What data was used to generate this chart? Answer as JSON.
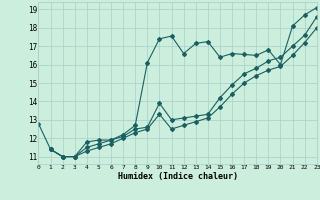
{
  "xlabel": "Humidex (Indice chaleur)",
  "bg_color": "#cceedd",
  "grid_color": "#aacccc",
  "line_color": "#1a6060",
  "xlim": [
    0,
    23
  ],
  "ylim": [
    10.6,
    19.4
  ],
  "xticks": [
    0,
    1,
    2,
    3,
    4,
    5,
    6,
    7,
    8,
    9,
    10,
    11,
    12,
    13,
    14,
    15,
    16,
    17,
    18,
    19,
    20,
    21,
    22,
    23
  ],
  "yticks": [
    11,
    12,
    13,
    14,
    15,
    16,
    17,
    18,
    19
  ],
  "line1_x": [
    0,
    1,
    2,
    3,
    4,
    5,
    6,
    7,
    8,
    9,
    10,
    11,
    12,
    13,
    14,
    15,
    16,
    17,
    18,
    19,
    20,
    21,
    22,
    23
  ],
  "line1_y": [
    12.8,
    11.4,
    11.0,
    11.0,
    11.8,
    11.9,
    11.9,
    12.2,
    12.7,
    16.1,
    17.4,
    17.55,
    16.6,
    17.15,
    17.25,
    16.4,
    16.6,
    16.55,
    16.5,
    16.8,
    16.0,
    18.1,
    18.7,
    19.1
  ],
  "line2_x": [
    1,
    2,
    3,
    4,
    5,
    6,
    7,
    8,
    9,
    10,
    11,
    12,
    13,
    14,
    15,
    16,
    17,
    18,
    19,
    20,
    21,
    22,
    23
  ],
  "line2_y": [
    11.4,
    11.0,
    11.0,
    11.5,
    11.7,
    11.9,
    12.1,
    12.5,
    12.6,
    13.9,
    13.0,
    13.1,
    13.2,
    13.3,
    14.2,
    14.9,
    15.5,
    15.8,
    16.2,
    16.4,
    17.0,
    17.6,
    18.6
  ],
  "line3_x": [
    1,
    2,
    3,
    4,
    5,
    6,
    7,
    8,
    9,
    10,
    11,
    12,
    13,
    14,
    15,
    16,
    17,
    18,
    19,
    20,
    21,
    22,
    23
  ],
  "line3_y": [
    11.4,
    11.0,
    11.0,
    11.3,
    11.5,
    11.7,
    12.0,
    12.3,
    12.5,
    13.3,
    12.5,
    12.7,
    12.9,
    13.1,
    13.7,
    14.4,
    15.0,
    15.4,
    15.7,
    15.9,
    16.5,
    17.2,
    18.0
  ]
}
